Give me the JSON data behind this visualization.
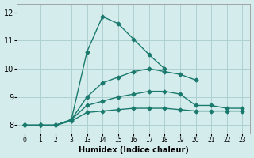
{
  "xlabel": "Humidex (Indice chaleur)",
  "ylabel": "",
  "background_color": "#d5ecec",
  "grid_color": "#aed0d0",
  "line_color": "#1a7a6e",
  "x_labels": [
    "0",
    "1",
    "2",
    "3",
    "13",
    "14",
    "15",
    "16",
    "17",
    "18",
    "19",
    "20",
    "21",
    "22",
    "23"
  ],
  "lines": {
    "line1_max": [
      8.0,
      8.0,
      8.0,
      8.2,
      10.6,
      11.85,
      11.6,
      11.05,
      10.5,
      10.0,
      null,
      null,
      null,
      null,
      null
    ],
    "line2_upper": [
      8.0,
      8.0,
      8.0,
      8.2,
      9.0,
      9.5,
      9.7,
      9.9,
      10.0,
      9.9,
      9.8,
      9.6,
      null,
      null,
      null
    ],
    "line3_mid": [
      8.0,
      8.0,
      8.0,
      8.2,
      8.7,
      8.85,
      9.0,
      9.1,
      9.2,
      9.2,
      9.1,
      8.7,
      8.7,
      8.6,
      8.6
    ],
    "line4_min": [
      8.0,
      8.0,
      8.0,
      8.15,
      8.45,
      8.5,
      8.55,
      8.6,
      8.6,
      8.6,
      8.55,
      8.5,
      8.5,
      8.5,
      8.5
    ]
  },
  "ylim": [
    7.7,
    12.3
  ],
  "yticks": [
    8,
    9,
    10,
    11,
    12
  ],
  "marker": "D",
  "markersize": 2.5,
  "linewidth": 1.0
}
